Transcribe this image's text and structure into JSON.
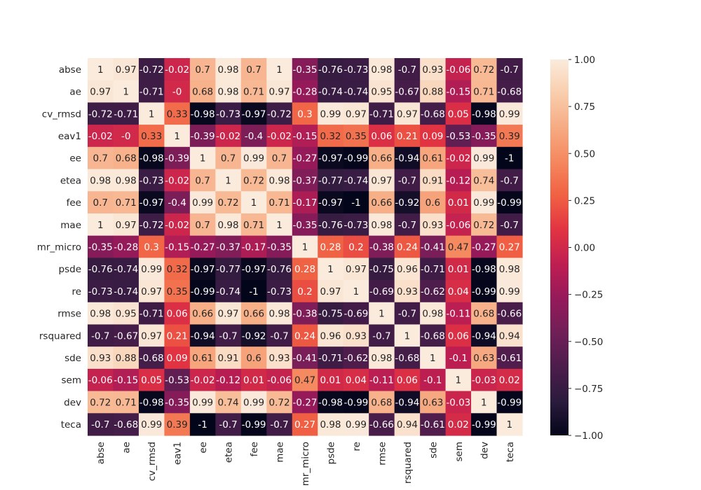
{
  "chart_data": {
    "type": "heatmap",
    "title": "",
    "xlabel": "",
    "ylabel": "",
    "x_labels": [
      "abse",
      "ae",
      "cv_rmsd",
      "eav1",
      "ee",
      "etea",
      "fee",
      "mae",
      "mr_micro",
      "psde",
      "re",
      "rmse",
      "rsquared",
      "sde",
      "sem",
      "dev",
      "teca"
    ],
    "y_labels": [
      "abse",
      "ae",
      "cv_rmsd",
      "eav1",
      "ee",
      "etea",
      "fee",
      "mae",
      "mr_micro",
      "psde",
      "re",
      "rmse",
      "rsquared",
      "sde",
      "sem",
      "dev",
      "teca"
    ],
    "values": [
      [
        "1",
        "0.97",
        "-0.72",
        "-0.02",
        "0.7",
        "0.98",
        "0.7",
        "1",
        "-0.35",
        "-0.76",
        "-0.73",
        "0.98",
        "-0.7",
        "0.93",
        "-0.06",
        "0.72",
        "-0.7"
      ],
      [
        "0.97",
        "1",
        "-0.71",
        "-0",
        "0.68",
        "0.98",
        "0.71",
        "0.97",
        "-0.28",
        "-0.74",
        "-0.74",
        "0.95",
        "-0.67",
        "0.88",
        "-0.15",
        "0.71",
        "-0.68"
      ],
      [
        "-0.72",
        "-0.71",
        "1",
        "0.33",
        "-0.98",
        "-0.73",
        "-0.97",
        "-0.72",
        "0.3",
        "0.99",
        "0.97",
        "-0.71",
        "0.97",
        "-0.68",
        "0.05",
        "-0.98",
        "0.99"
      ],
      [
        "-0.02",
        "-0",
        "0.33",
        "1",
        "-0.39",
        "-0.02",
        "-0.4",
        "-0.02",
        "-0.15",
        "0.32",
        "0.35",
        "0.06",
        "0.21",
        "0.09",
        "-0.53",
        "-0.35",
        "0.39"
      ],
      [
        "0.7",
        "0.68",
        "-0.98",
        "-0.39",
        "1",
        "0.7",
        "0.99",
        "0.7",
        "-0.27",
        "-0.97",
        "-0.99",
        "0.66",
        "-0.94",
        "0.61",
        "-0.02",
        "0.99",
        "-1"
      ],
      [
        "0.98",
        "0.98",
        "-0.73",
        "-0.02",
        "0.7",
        "1",
        "0.72",
        "0.98",
        "-0.37",
        "-0.77",
        "-0.74",
        "0.97",
        "-0.7",
        "0.91",
        "-0.12",
        "0.74",
        "-0.7"
      ],
      [
        "0.7",
        "0.71",
        "-0.97",
        "-0.4",
        "0.99",
        "0.72",
        "1",
        "0.71",
        "-0.17",
        "-0.97",
        "-1",
        "0.66",
        "-0.92",
        "0.6",
        "0.01",
        "0.99",
        "-0.99"
      ],
      [
        "1",
        "0.97",
        "-0.72",
        "-0.02",
        "0.7",
        "0.98",
        "0.71",
        "1",
        "-0.35",
        "-0.76",
        "-0.73",
        "0.98",
        "-0.7",
        "0.93",
        "-0.06",
        "0.72",
        "-0.7"
      ],
      [
        "-0.35",
        "-0.28",
        "0.3",
        "-0.15",
        "-0.27",
        "-0.37",
        "-0.17",
        "-0.35",
        "1",
        "0.28",
        "0.2",
        "-0.38",
        "0.24",
        "-0.41",
        "0.47",
        "-0.27",
        "0.27"
      ],
      [
        "-0.76",
        "-0.74",
        "0.99",
        "0.32",
        "-0.97",
        "-0.77",
        "-0.97",
        "-0.76",
        "0.28",
        "1",
        "0.97",
        "-0.75",
        "0.96",
        "-0.71",
        "0.01",
        "-0.98",
        "0.98"
      ],
      [
        "-0.73",
        "-0.74",
        "0.97",
        "0.35",
        "-0.99",
        "-0.74",
        "-1",
        "-0.73",
        "0.2",
        "0.97",
        "1",
        "-0.69",
        "0.93",
        "-0.62",
        "0.04",
        "-0.99",
        "0.99"
      ],
      [
        "0.98",
        "0.95",
        "-0.71",
        "0.06",
        "0.66",
        "0.97",
        "0.66",
        "0.98",
        "-0.38",
        "-0.75",
        "-0.69",
        "1",
        "-0.7",
        "0.98",
        "-0.11",
        "0.68",
        "-0.66"
      ],
      [
        "-0.7",
        "-0.67",
        "0.97",
        "0.21",
        "-0.94",
        "-0.7",
        "-0.92",
        "-0.7",
        "0.24",
        "0.96",
        "0.93",
        "-0.7",
        "1",
        "-0.68",
        "0.06",
        "-0.94",
        "0.94"
      ],
      [
        "0.93",
        "0.88",
        "-0.68",
        "0.09",
        "0.61",
        "0.91",
        "0.6",
        "0.93",
        "-0.41",
        "-0.71",
        "-0.62",
        "0.98",
        "-0.68",
        "1",
        "-0.1",
        "0.63",
        "-0.61"
      ],
      [
        "-0.06",
        "-0.15",
        "0.05",
        "-0.53",
        "-0.02",
        "-0.12",
        "0.01",
        "-0.06",
        "0.47",
        "0.01",
        "0.04",
        "-0.11",
        "0.06",
        "-0.1",
        "1",
        "-0.03",
        "0.02"
      ],
      [
        "0.72",
        "0.71",
        "-0.98",
        "-0.35",
        "0.99",
        "0.74",
        "0.99",
        "0.72",
        "-0.27",
        "-0.98",
        "-0.99",
        "0.68",
        "-0.94",
        "0.63",
        "-0.03",
        "1",
        "-0.99"
      ],
      [
        "-0.7",
        "-0.68",
        "0.99",
        "0.39",
        "-1",
        "-0.7",
        "-0.99",
        "-0.7",
        "0.27",
        "0.98",
        "0.99",
        "-0.66",
        "0.94",
        "-0.61",
        "0.02",
        "-0.99",
        "1"
      ]
    ],
    "colorbar": {
      "min": -1.0,
      "max": 1.0,
      "ticks": [
        "1.00",
        "0.75",
        "0.50",
        "0.25",
        "0.00",
        "−0.25",
        "−0.50",
        "−0.75",
        "−1.00"
      ],
      "tick_values": [
        1.0,
        0.75,
        0.5,
        0.25,
        0.0,
        -0.25,
        -0.5,
        -0.75,
        -1.0
      ],
      "colormap": "rocket",
      "stops": [
        "#03051a",
        "#2b1b3d",
        "#4c1d4b",
        "#701f57",
        "#951a5a",
        "#be1e52",
        "#e13342",
        "#f06043",
        "#f5875e",
        "#f6aa82",
        "#f9cdac",
        "#faebdd"
      ]
    },
    "grid": false,
    "annotated": true
  }
}
